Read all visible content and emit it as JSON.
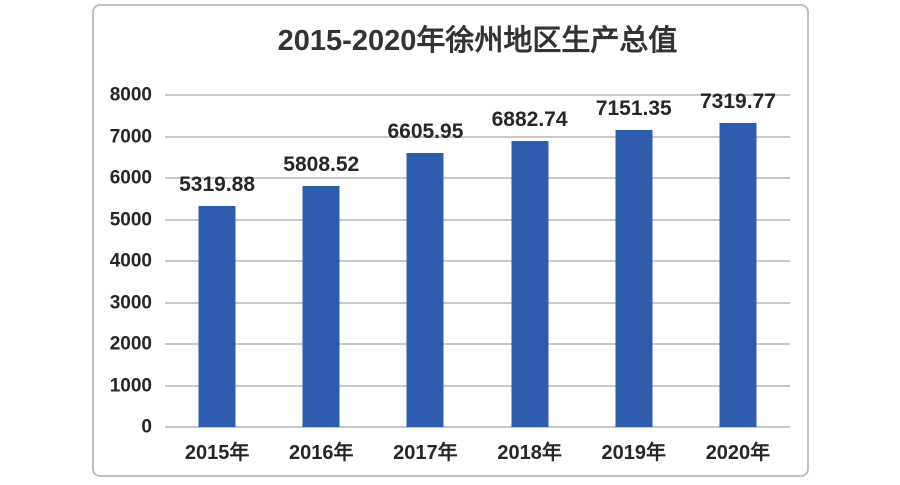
{
  "chart_data": {
    "type": "bar",
    "title": "2015-2020年徐州地区生产总值",
    "categories": [
      "2015年",
      "2016年",
      "2017年",
      "2018年",
      "2019年",
      "2020年"
    ],
    "values": [
      5319.88,
      5808.52,
      6605.95,
      6882.74,
      7151.35,
      7319.77
    ],
    "value_labels": [
      "5319.88",
      "5808.52",
      "6605.95",
      "6882.74",
      "7151.35",
      "7319.77"
    ],
    "xlabel": "",
    "ylabel": "",
    "ylim": [
      0,
      8000
    ],
    "ytick_step": 1000,
    "ytick_labels": [
      "0",
      "1000",
      "2000",
      "3000",
      "4000",
      "5000",
      "6000",
      "7000",
      "8000"
    ],
    "grid": true,
    "legend_position": "none",
    "colors": {
      "bar": "#2f5dad",
      "gridline": "#c8c8c8",
      "frame_border": "#bfbfbf",
      "axis_text": "#262626",
      "title_text": "#333333",
      "background": "#ffffff"
    }
  }
}
